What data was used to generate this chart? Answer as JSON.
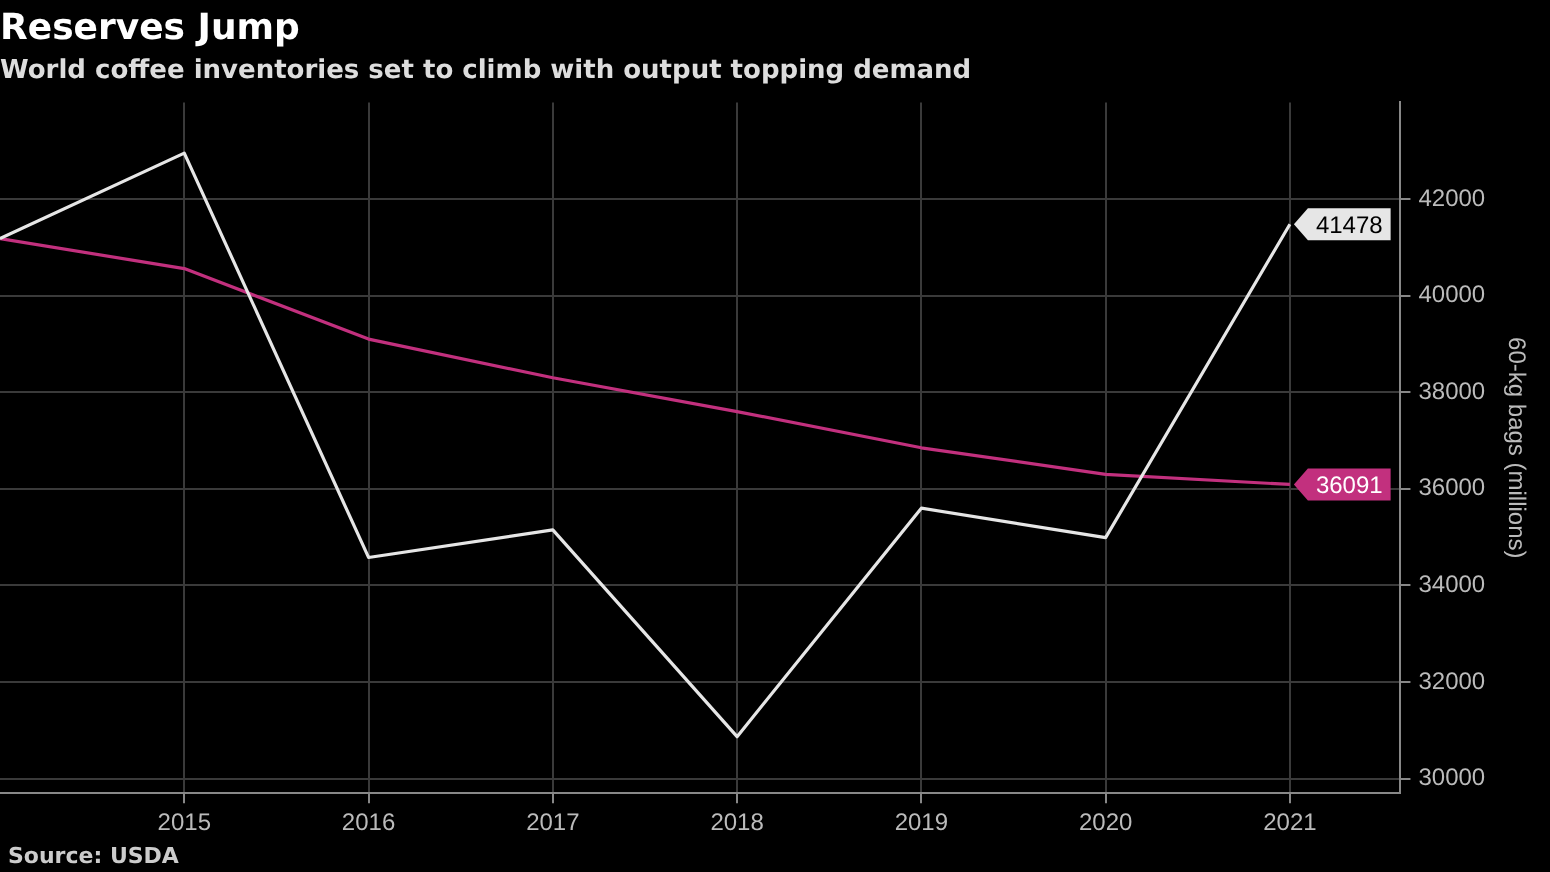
{
  "chart_data": {
    "type": "line",
    "title": "Reserves Jump",
    "subtitle": "World coffee inventories set to climb with output topping demand",
    "x": [
      2014,
      2015,
      2016,
      2017,
      2018,
      2019,
      2020,
      2021
    ],
    "series": [
      {
        "color": "#e6e6e6",
        "values": [
          41180,
          42950,
          34580,
          35150,
          30870,
          35600,
          34990,
          41478
        ],
        "value_labels": [
          null,
          null,
          null,
          null,
          null,
          null,
          null,
          "41478"
        ]
      },
      {
        "color": "#c2307e",
        "values": [
          41180,
          40560,
          39100,
          38300,
          37600,
          36850,
          36300,
          36091
        ],
        "value_labels": [
          null,
          null,
          null,
          null,
          null,
          null,
          null,
          "36091"
        ]
      }
    ],
    "xlim": [
      2014,
      2021.6
    ],
    "xticks": [
      2015,
      2016,
      2017,
      2018,
      2019,
      2020,
      2021
    ],
    "ylim": [
      29700,
      44000
    ],
    "yticks": [
      30000,
      32000,
      34000,
      36000,
      38000,
      40000,
      42000
    ],
    "ylabel": "60-kg bags (millions)",
    "grid": true,
    "legend": false,
    "marker": "none",
    "line_style": "solid",
    "annotations": [
      "Source: USDA"
    ]
  }
}
